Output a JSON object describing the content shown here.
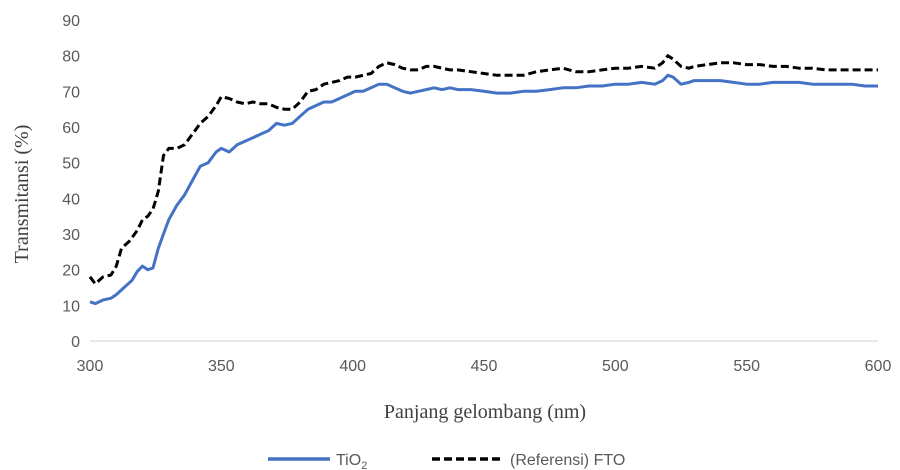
{
  "chart_data": {
    "type": "line",
    "title": "",
    "xlabel": "Panjang gelombang (nm)",
    "ylabel": "Transmitansi (%)",
    "xlim": [
      300,
      600
    ],
    "ylim": [
      0,
      90
    ],
    "x_ticks": [
      300,
      350,
      400,
      450,
      500,
      550,
      600
    ],
    "y_ticks": [
      0,
      10,
      20,
      30,
      40,
      50,
      60,
      70,
      80,
      90
    ],
    "grid": false,
    "legend_position": "bottom",
    "series": [
      {
        "name": "TiO",
        "name_subscript": "2",
        "color": "#4472C4",
        "style": "solid",
        "x": [
          300,
          302,
          305,
          308,
          310,
          313,
          316,
          318,
          320,
          322,
          324,
          326,
          328,
          330,
          333,
          336,
          339,
          342,
          345,
          348,
          350,
          353,
          356,
          359,
          362,
          365,
          368,
          371,
          374,
          377,
          380,
          383,
          386,
          389,
          392,
          395,
          398,
          401,
          404,
          407,
          410,
          413,
          416,
          419,
          422,
          425,
          428,
          431,
          434,
          437,
          440,
          445,
          450,
          455,
          460,
          465,
          470,
          475,
          480,
          485,
          490,
          495,
          500,
          505,
          510,
          515,
          518,
          520,
          522,
          525,
          528,
          530,
          535,
          540,
          545,
          550,
          555,
          560,
          565,
          570,
          575,
          580,
          585,
          590,
          595,
          600
        ],
        "y": [
          11,
          10.5,
          11.5,
          12,
          13,
          15,
          17,
          19.5,
          21,
          20,
          20.5,
          26,
          30,
          34,
          38,
          41,
          45,
          49,
          50,
          53,
          54,
          53,
          55,
          56,
          57,
          58,
          59,
          61,
          60.5,
          61,
          63,
          65,
          66,
          67,
          67,
          68,
          69,
          70,
          70,
          71,
          72,
          72,
          71,
          70,
          69.5,
          70,
          70.5,
          71,
          70.5,
          71,
          70.5,
          70.5,
          70,
          69.5,
          69.5,
          70,
          70,
          70.5,
          71,
          71,
          71.5,
          71.5,
          72,
          72,
          72.5,
          72,
          73,
          74.5,
          74,
          72,
          72.5,
          73,
          73,
          73,
          72.5,
          72,
          72,
          72.5,
          72.5,
          72.5,
          72,
          72,
          72,
          72,
          71.5,
          71.5
        ]
      },
      {
        "name": "(Referensi) FTO",
        "color": "#000000",
        "style": "dashed",
        "x": [
          300,
          302,
          305,
          308,
          310,
          312,
          315,
          318,
          320,
          322,
          324,
          326,
          328,
          330,
          333,
          336,
          339,
          342,
          345,
          348,
          350,
          353,
          356,
          359,
          362,
          365,
          368,
          371,
          374,
          377,
          380,
          383,
          386,
          389,
          392,
          395,
          398,
          401,
          404,
          407,
          410,
          413,
          416,
          419,
          422,
          425,
          428,
          431,
          434,
          437,
          440,
          445,
          450,
          455,
          460,
          465,
          470,
          475,
          480,
          485,
          490,
          495,
          500,
          505,
          510,
          515,
          518,
          520,
          522,
          525,
          528,
          530,
          535,
          540,
          545,
          550,
          555,
          560,
          565,
          570,
          575,
          580,
          585,
          590,
          595,
          600
        ],
        "y": [
          18,
          16,
          18,
          18.5,
          21,
          26,
          28,
          31,
          34,
          35,
          37,
          42,
          52,
          54,
          54,
          55,
          58,
          61,
          63,
          66,
          68.5,
          68,
          67,
          66.5,
          67,
          66.5,
          66.5,
          65.5,
          65,
          65,
          67,
          70,
          70.5,
          72,
          72.5,
          73,
          74,
          74,
          74.5,
          75,
          77,
          78,
          77.5,
          76.5,
          76,
          76,
          77,
          77,
          76.5,
          76,
          76,
          75.5,
          75,
          74.5,
          74.5,
          74.5,
          75.5,
          76,
          76.5,
          75.5,
          75.5,
          76,
          76.5,
          76.5,
          77,
          76.5,
          78,
          80,
          79,
          77,
          76.5,
          77,
          77.5,
          78,
          78,
          77.5,
          77.5,
          77,
          77,
          76.5,
          76.5,
          76,
          76,
          76,
          76,
          76
        ]
      }
    ]
  }
}
